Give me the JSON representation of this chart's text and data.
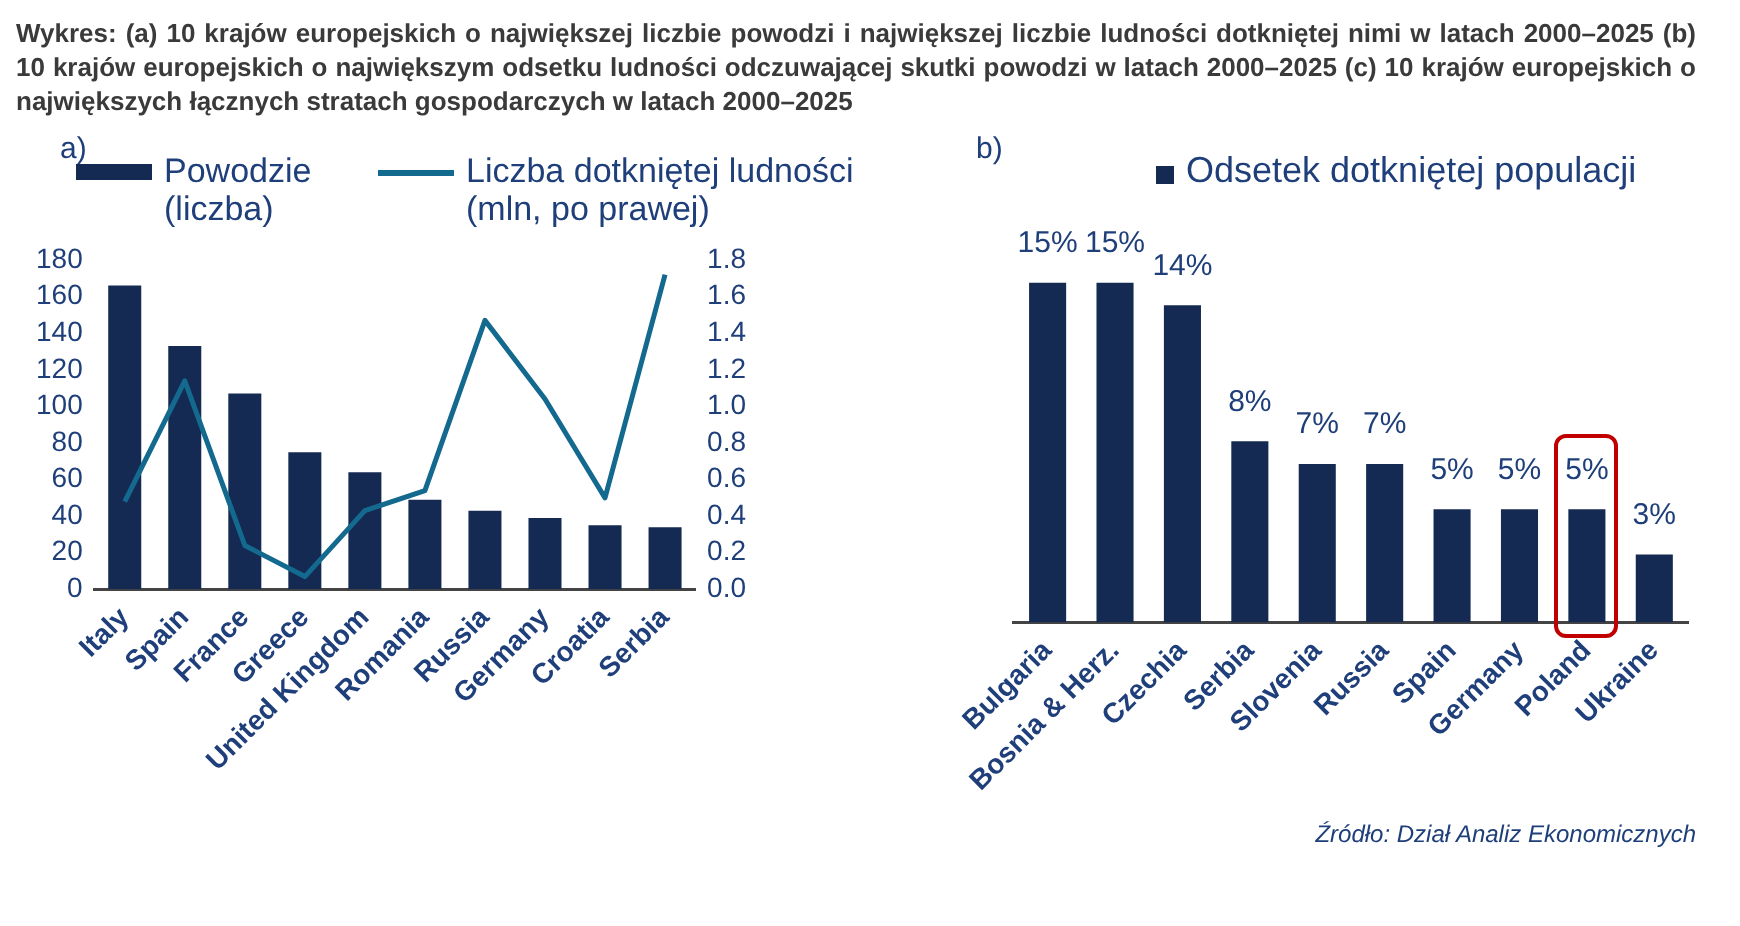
{
  "chart_data": [
    {
      "type": "bar",
      "title": "Wykres: (a) 10 krajów europejskich o największej liczbie powodzi i największej liczbie ludności dotkniętej nimi w latach 2000–2025 (b) 10 krajów europejskich o największym odsetku ludności odczuwającej skutki powodzi w latach 2000–2025 (c) 10 krajów europejskich o największych łącznych stratach gospodarczych w latach 2000–2025",
      "subtitle": "a)",
      "categories": [
        "Italy",
        "Spain",
        "France",
        "Greece",
        "United Kingdom",
        "Romania",
        "Russia",
        "Germany",
        "Croatia",
        "Serbia"
      ],
      "series": [
        {
          "name": "Powodzie (liczba)",
          "color": "#142a52",
          "values": [
            166,
            133,
            107,
            75,
            64,
            49,
            43,
            39,
            35,
            34
          ]
        },
        {
          "name": "Liczba dotkniętej ludności (mln, po prawej)",
          "type": "line",
          "axis": "y2",
          "color": "#14698f",
          "values": [
            0.48,
            1.14,
            0.24,
            0.07,
            0.43,
            0.54,
            1.47,
            1.04,
            0.5,
            1.72
          ]
        }
      ],
      "ylim": [
        0,
        180
      ],
      "yticks": [
        0,
        20,
        40,
        60,
        80,
        100,
        120,
        140,
        160,
        180
      ],
      "y2lim": [
        0,
        1.8
      ],
      "y2ticks": [
        {
          "value": 0,
          "label": "0.0"
        },
        0.2,
        0.4,
        0.6,
        0.8,
        {
          "value": 1,
          "label": "1.0"
        },
        1.2,
        1.4,
        1.6,
        1.8
      ],
      "legend": "top",
      "marker": "none"
    },
    {
      "type": "bar",
      "title": "b)",
      "categories": [
        "Bulgaria",
        "Bosnia & Herz.",
        "Czechia",
        "Serbia",
        "Slovenia",
        "Russia",
        "Spain",
        "Germany",
        "Poland",
        "Ukraine"
      ],
      "series": [
        {
          "name": "Odsetek dotkniętej populacji",
          "color": "#142a52",
          "values": [
            15,
            15,
            14,
            8,
            7,
            7,
            5,
            5,
            5,
            3
          ],
          "value_labels": [
            "15%",
            "15%",
            "14%",
            "8%",
            "7%",
            "7%",
            "5%",
            "5%",
            "5%",
            "3%"
          ]
        }
      ],
      "tick_labels": "x",
      "legend": "top",
      "annotations": [
        "Źródło: Dział Analiz Ekonomicznych"
      ]
    }
  ]
}
